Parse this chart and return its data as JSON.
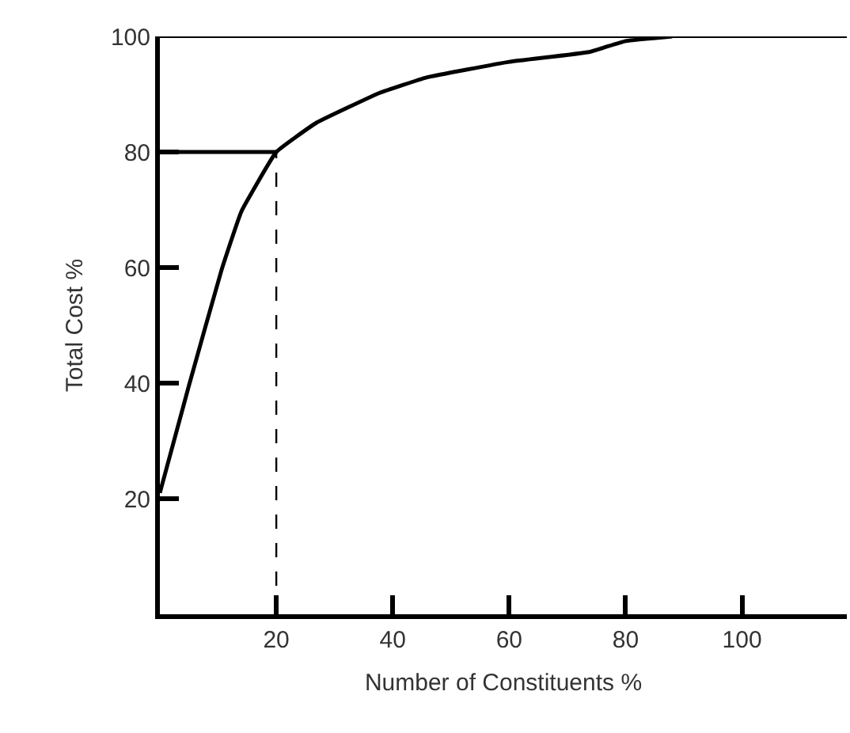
{
  "chart_data": {
    "type": "line",
    "xlabel": "Number of Constituents %",
    "ylabel": "Total Cost %",
    "xlim": [
      0,
      118
    ],
    "ylim": [
      0,
      100
    ],
    "xticks": [
      20,
      40,
      60,
      80,
      100
    ],
    "yticks": [
      20,
      40,
      60,
      80,
      100
    ],
    "marker": "none",
    "series": [
      {
        "color": "#000000",
        "x": [
          0,
          5,
          10.6,
          14,
          20,
          26.8,
          37.7,
          45.8,
          60,
          73.7,
          80,
          88
        ],
        "values": [
          21,
          39.6,
          59.6,
          69.7,
          80,
          85,
          90.2,
          92.9,
          95.6,
          97.3,
          99.2,
          100
        ]
      },
      {
        "color": "#000000",
        "x": [
          0,
          20
        ],
        "values": [
          80,
          80
        ],
        "line_style": "solid"
      },
      {
        "color": "#000000",
        "x": [
          20,
          20
        ],
        "values": [
          0,
          80
        ],
        "line_style": "dashed"
      }
    ],
    "ref_lines": [
      {
        "axis": "y",
        "value": 100,
        "color": "#000000"
      }
    ]
  }
}
